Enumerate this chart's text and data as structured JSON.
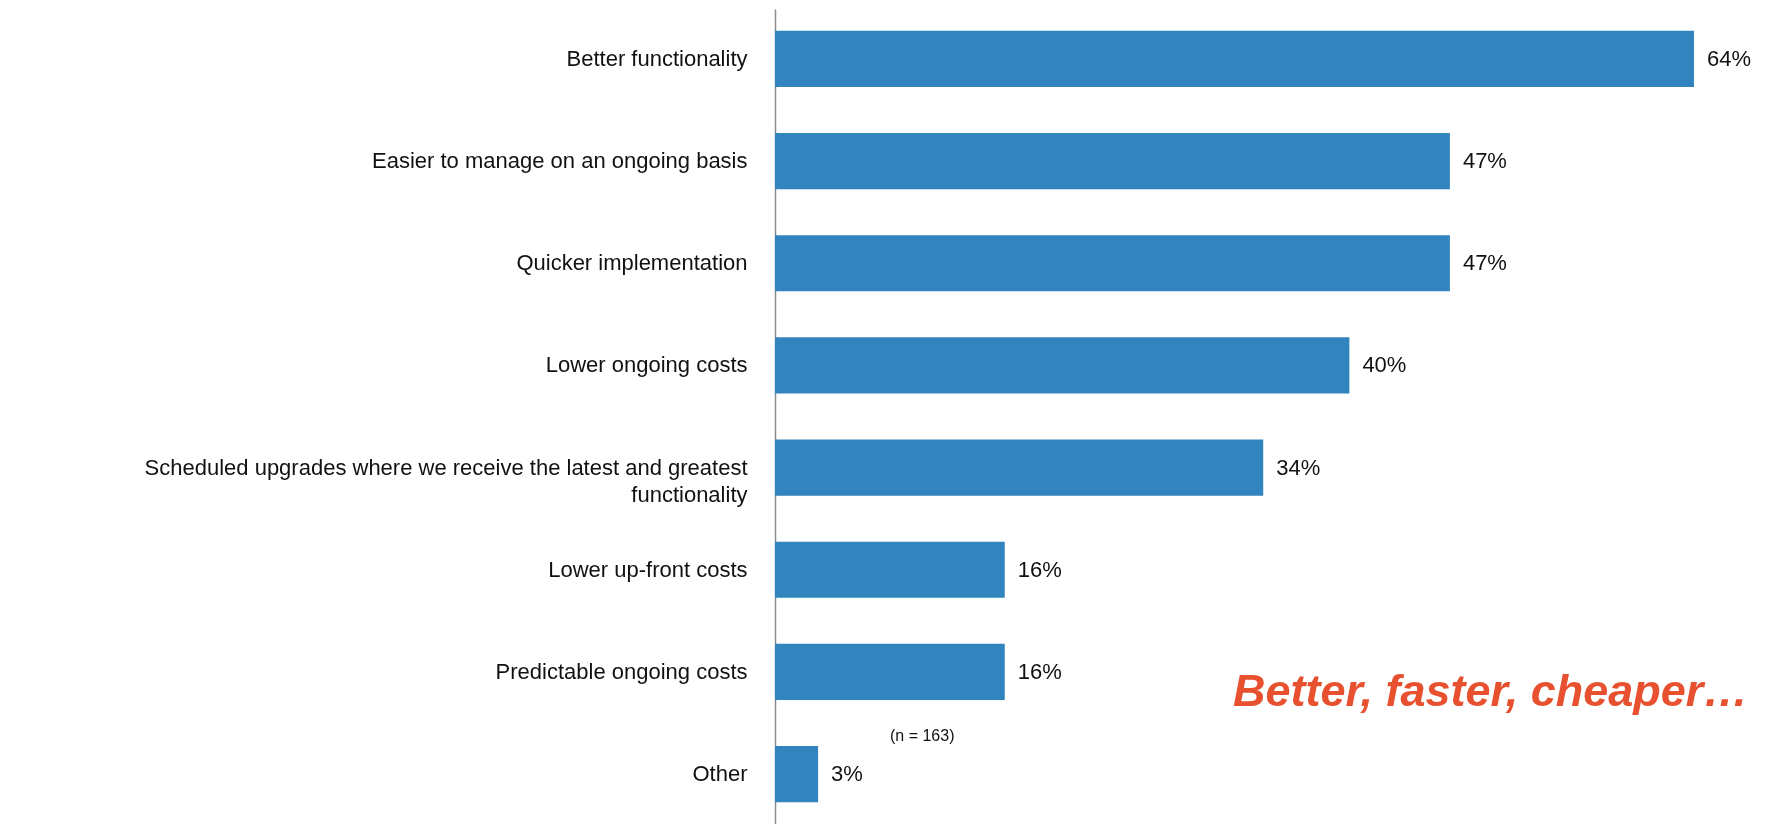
{
  "chart_data": {
    "type": "bar",
    "orientation": "horizontal",
    "categories": [
      "Better functionality",
      "Easier to manage on an ongoing basis",
      "Quicker implementation",
      "Lower ongoing costs",
      "Scheduled upgrades where we receive the latest and greatest functionality",
      "Lower up-front costs",
      "Predictable ongoing costs",
      "Other"
    ],
    "values": [
      64,
      47,
      47,
      40,
      34,
      16,
      16,
      3
    ],
    "value_labels": [
      "64%",
      "47%",
      "47%",
      "40%",
      "34%",
      "16%",
      "16%",
      "3%"
    ],
    "color": "#3284bf",
    "annotations": [
      "(n = 163)",
      "Better, faster, cheaper…"
    ]
  }
}
